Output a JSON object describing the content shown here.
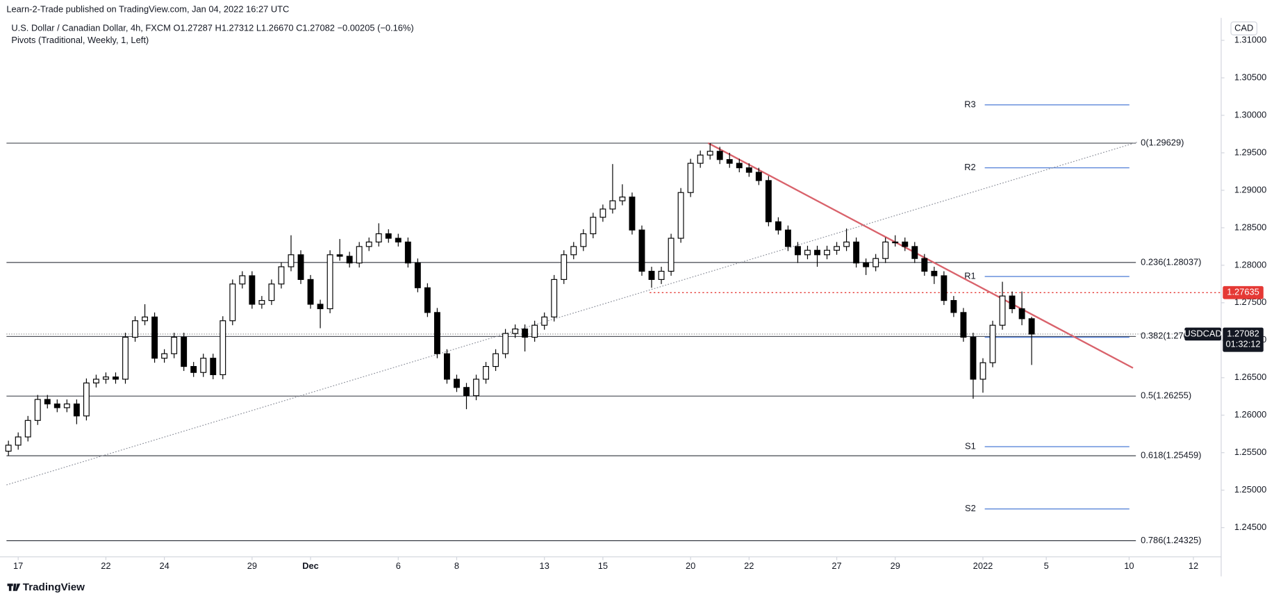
{
  "chart_data": {
    "type": "candlestick",
    "published": "Learn-2-Trade published on TradingView.com, Jan 04, 2022 16:27 UTC",
    "title": "U.S. Dollar / Canadian Dollar, 4h, FXCM   O1.27287  H1.27312  L1.26670  C1.27082  −0.00205 (−0.16%)",
    "subtitle": "Pivots (Traditional, Weekly, 1, Left)",
    "currency": "CAD",
    "symbol": "USDCAD",
    "countdown": "01:32:12",
    "brand": "TradingView",
    "xlim": [
      -0.2,
      124.2
    ],
    "ylim": [
      1.2411,
      1.313
    ],
    "xticks": [
      {
        "value": 1,
        "label": "17"
      },
      {
        "value": 10,
        "label": "22"
      },
      {
        "value": 16,
        "label": "24"
      },
      {
        "value": 25,
        "label": "29"
      },
      {
        "value": 31,
        "label": "Dec"
      },
      {
        "value": 40,
        "label": "6"
      },
      {
        "value": 46,
        "label": "8"
      },
      {
        "value": 55,
        "label": "13"
      },
      {
        "value": 61,
        "label": "15"
      },
      {
        "value": 70,
        "label": "20"
      },
      {
        "value": 76,
        "label": "22"
      },
      {
        "value": 85,
        "label": "27"
      },
      {
        "value": 91,
        "label": "29"
      },
      {
        "value": 100,
        "label": "2022"
      },
      {
        "value": 106.5,
        "label": "5"
      },
      {
        "value": 115,
        "label": "10"
      },
      {
        "value": 121.6,
        "label": "12"
      }
    ],
    "yticks": [
      {
        "value": 1.245,
        "label": "1.24500"
      },
      {
        "value": 1.25,
        "label": "1.25000"
      },
      {
        "value": 1.255,
        "label": "1.25500"
      },
      {
        "value": 1.26,
        "label": "1.26000"
      },
      {
        "value": 1.265,
        "label": "1.26500"
      },
      {
        "value": 1.27,
        "label": "1.27000"
      },
      {
        "value": 1.275,
        "label": "1.27500"
      },
      {
        "value": 1.28,
        "label": "1.28000"
      },
      {
        "value": 1.285,
        "label": "1.28500"
      },
      {
        "value": 1.29,
        "label": "1.29000"
      },
      {
        "value": 1.295,
        "label": "1.29500"
      },
      {
        "value": 1.3,
        "label": "1.30000"
      },
      {
        "value": 1.305,
        "label": "1.30500"
      },
      {
        "value": 1.31,
        "label": "1.31000"
      }
    ],
    "open": [
      1.2552,
      1.256,
      1.2571,
      1.2593,
      1.2621,
      1.2615,
      1.261,
      1.2615,
      1.2599,
      1.2643,
      1.2648,
      1.2651,
      1.2648,
      1.2704,
      1.2726,
      1.2731,
      1.2676,
      1.2682,
      1.2704,
      1.2665,
      1.2657,
      1.2676,
      1.2654,
      1.2726,
      1.2775,
      1.2786,
      1.2748,
      1.2753,
      1.2775,
      1.2798,
      1.2814,
      1.2781,
      1.2748,
      1.2742,
      1.2814,
      1.2812,
      1.2803,
      1.2825,
      1.2831,
      1.2842,
      1.2836,
      1.2831,
      1.2803,
      1.277,
      1.2737,
      1.2682,
      1.2648,
      1.2637,
      1.2626,
      1.2648,
      1.2665,
      1.2682,
      1.2709,
      1.2715,
      1.2704,
      1.272,
      1.2731,
      1.2781,
      1.2814,
      1.2825,
      1.2842,
      1.2864,
      1.2875,
      1.2886,
      1.2891,
      1.2847,
      1.2792,
      1.2781,
      1.2792,
      1.2836,
      1.2897,
      1.2936,
      1.2947,
      1.2952,
      1.2941,
      1.2936,
      1.293,
      1.2924,
      1.2913,
      1.2858,
      1.2847,
      1.2825,
      1.2814,
      1.282,
      1.2814,
      1.282,
      1.2825,
      1.2831,
      1.2803,
      1.2798,
      1.2809,
      1.2831,
      1.2831,
      1.2825,
      1.2809,
      1.2792,
      1.2786,
      1.2753,
      1.2737,
      1.2704,
      1.2648,
      1.267,
      1.272,
      1.2759,
      1.2742,
      1.27287
    ],
    "high": [
      1.2566,
      1.2577,
      1.2599,
      1.2627,
      1.2627,
      1.2621,
      1.2621,
      1.2621,
      1.2649,
      1.2654,
      1.2657,
      1.2657,
      1.271,
      1.2732,
      1.2748,
      1.2737,
      1.2688,
      1.271,
      1.271,
      1.2671,
      1.2682,
      1.2682,
      1.2732,
      1.2781,
      1.2792,
      1.2792,
      1.2759,
      1.2781,
      1.2804,
      1.284,
      1.282,
      1.2787,
      1.2754,
      1.282,
      1.2835,
      1.2818,
      1.2831,
      1.2837,
      1.2856,
      1.2848,
      1.2842,
      1.2837,
      1.2809,
      1.2776,
      1.2743,
      1.2688,
      1.2654,
      1.2643,
      1.2654,
      1.2671,
      1.2688,
      1.2715,
      1.2721,
      1.2721,
      1.2726,
      1.2737,
      1.2787,
      1.282,
      1.2831,
      1.2848,
      1.287,
      1.2881,
      1.2935,
      1.2908,
      1.2897,
      1.2853,
      1.2798,
      1.2798,
      1.2842,
      1.2903,
      1.2942,
      1.2953,
      1.29629,
      1.2958,
      1.295,
      1.2942,
      1.2936,
      1.293,
      1.2919,
      1.2864,
      1.2853,
      1.2831,
      1.2826,
      1.2826,
      1.2826,
      1.2831,
      1.2849,
      1.2837,
      1.2809,
      1.2815,
      1.2837,
      1.284,
      1.2837,
      1.2831,
      1.2815,
      1.2798,
      1.2792,
      1.2759,
      1.2743,
      1.271,
      1.2676,
      1.2726,
      1.2778,
      1.2765,
      1.2765,
      1.27312
    ],
    "low": [
      1.2546,
      1.2554,
      1.2565,
      1.2587,
      1.2609,
      1.2604,
      1.2604,
      1.2588,
      1.2593,
      1.2637,
      1.2642,
      1.2642,
      1.2642,
      1.2698,
      1.272,
      1.267,
      1.267,
      1.2676,
      1.2659,
      1.2651,
      1.2651,
      1.2648,
      1.2648,
      1.272,
      1.2769,
      1.2742,
      1.2742,
      1.2747,
      1.2769,
      1.2792,
      1.2775,
      1.2742,
      1.2716,
      1.2736,
      1.2806,
      1.2797,
      1.2797,
      1.2819,
      1.2825,
      1.283,
      1.2825,
      1.2797,
      1.2764,
      1.2731,
      1.2676,
      1.2642,
      1.2631,
      1.2608,
      1.262,
      1.2642,
      1.2659,
      1.2676,
      1.2703,
      1.2685,
      1.2698,
      1.2714,
      1.2725,
      1.2775,
      1.2808,
      1.2819,
      1.2836,
      1.2858,
      1.2869,
      1.288,
      1.2841,
      1.2786,
      1.277,
      1.2775,
      1.2786,
      1.283,
      1.2891,
      1.293,
      1.2941,
      1.2935,
      1.293,
      1.2924,
      1.2918,
      1.2907,
      1.2852,
      1.2841,
      1.2819,
      1.2803,
      1.2808,
      1.2798,
      1.2808,
      1.2814,
      1.2819,
      1.2797,
      1.2787,
      1.2792,
      1.2803,
      1.2825,
      1.2819,
      1.2803,
      1.2786,
      1.2775,
      1.2747,
      1.2731,
      1.2698,
      1.2622,
      1.263,
      1.2664,
      1.2714,
      1.2736,
      1.272,
      1.2667
    ],
    "close": [
      1.256,
      1.2571,
      1.2593,
      1.2621,
      1.2615,
      1.261,
      1.2615,
      1.2599,
      1.2643,
      1.2648,
      1.2651,
      1.2648,
      1.2704,
      1.2726,
      1.2731,
      1.2676,
      1.2682,
      1.2704,
      1.2665,
      1.2657,
      1.2676,
      1.2654,
      1.2726,
      1.2775,
      1.2786,
      1.2748,
      1.2753,
      1.2775,
      1.2798,
      1.2814,
      1.2781,
      1.2748,
      1.2742,
      1.2814,
      1.2812,
      1.2803,
      1.2825,
      1.2831,
      1.2842,
      1.2836,
      1.2831,
      1.2803,
      1.277,
      1.2737,
      1.2682,
      1.2648,
      1.2637,
      1.2626,
      1.2648,
      1.2665,
      1.2682,
      1.2709,
      1.2715,
      1.2704,
      1.272,
      1.2731,
      1.2781,
      1.2814,
      1.2825,
      1.2842,
      1.2864,
      1.2875,
      1.2886,
      1.2891,
      1.2847,
      1.2792,
      1.2781,
      1.2792,
      1.2836,
      1.2897,
      1.2936,
      1.2947,
      1.2952,
      1.2941,
      1.2936,
      1.293,
      1.2924,
      1.2913,
      1.2858,
      1.2847,
      1.2825,
      1.2814,
      1.282,
      1.2814,
      1.282,
      1.2825,
      1.2831,
      1.2803,
      1.2798,
      1.2809,
      1.2831,
      1.2831,
      1.2825,
      1.2809,
      1.2792,
      1.2786,
      1.2753,
      1.2737,
      1.2704,
      1.2648,
      1.267,
      1.272,
      1.2759,
      1.2742,
      1.27287,
      1.27082
    ],
    "up_color": "#ffffff",
    "down_color": "#000000",
    "fib_levels": [
      {
        "value": 1.29629,
        "label": "0(1.29629)"
      },
      {
        "value": 1.28037,
        "label": "0.236(1.28037)"
      },
      {
        "value": 1.27051,
        "label": "0.382(1.27051)"
      },
      {
        "value": 1.26255,
        "label": "0.5(1.26255)"
      },
      {
        "value": 1.25459,
        "label": "0.618(1.25459)"
      },
      {
        "value": 1.24325,
        "label": "0.786(1.24325)"
      }
    ],
    "pivot_color": "#5b86d9",
    "pivots": [
      {
        "name": "R3",
        "value": 1.3014
      },
      {
        "name": "R2",
        "value": 1.293
      },
      {
        "name": "R1",
        "value": 1.2785
      },
      {
        "name": null,
        "value": 1.2704
      },
      {
        "name": "S1",
        "value": 1.2558
      },
      {
        "name": "S2",
        "value": 1.2475
      }
    ],
    "trendlines": [
      {
        "color": "#d9626b",
        "style": "solid",
        "x": [
          71.8,
          115.4
        ],
        "y": [
          1.2963,
          1.2663
        ]
      },
      {
        "color": "#8a8e99",
        "style": "dotted",
        "x": [
          -0.2,
          115.8
        ],
        "y": [
          1.2507,
          1.2964
        ]
      }
    ],
    "level": {
      "value": 1.27635,
      "x_start": 65.8,
      "color": "#e53935"
    },
    "last_price": {
      "value": 1.27082,
      "color": "#131722"
    }
  }
}
